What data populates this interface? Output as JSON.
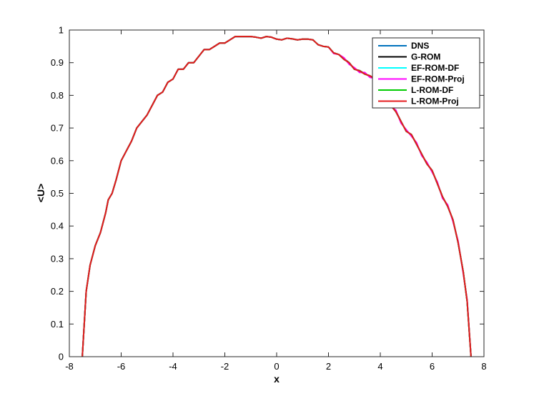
{
  "chart_data": {
    "type": "line",
    "title": "",
    "xlabel": "x",
    "ylabel": "<U>",
    "xlim": [
      -8,
      8
    ],
    "ylim": [
      0,
      1
    ],
    "xticks": [
      -8,
      -6,
      -4,
      -2,
      0,
      2,
      4,
      6,
      8
    ],
    "yticks": [
      0,
      0.1,
      0.2,
      0.3,
      0.4,
      0.5,
      0.6,
      0.7,
      0.8,
      0.9,
      1
    ],
    "xtick_labels": [
      "-8",
      "-6",
      "-4",
      "-2",
      "0",
      "2",
      "4",
      "6",
      "8"
    ],
    "ytick_labels": [
      "0",
      "0.1",
      "0.2",
      "0.3",
      "0.4",
      "0.5",
      "0.6",
      "0.7",
      "0.8",
      "0.9",
      "1"
    ],
    "grid": false,
    "legend_position": "top-right",
    "x": [
      -7.5,
      -7.35,
      -7.2,
      -7.0,
      -6.8,
      -6.6,
      -6.5,
      -6.35,
      -6.2,
      -6.0,
      -5.8,
      -5.6,
      -5.4,
      -5.2,
      -5.0,
      -4.8,
      -4.6,
      -4.4,
      -4.2,
      -4.0,
      -3.8,
      -3.6,
      -3.4,
      -3.2,
      -3.0,
      -2.8,
      -2.6,
      -2.4,
      -2.2,
      -2.0,
      -1.8,
      -1.6,
      -1.4,
      -1.2,
      -1.0,
      -0.8,
      -0.6,
      -0.4,
      -0.2,
      0.0,
      0.2,
      0.4,
      0.6,
      0.8,
      1.0,
      1.2,
      1.4,
      1.6,
      1.8,
      2.0,
      2.2,
      2.4,
      2.6,
      2.8,
      3.0,
      3.2,
      3.4,
      3.6,
      3.8,
      4.0,
      4.2,
      4.4,
      4.6,
      4.8,
      5.0,
      5.2,
      5.4,
      5.6,
      5.8,
      6.0,
      6.2,
      6.4,
      6.6,
      6.8,
      7.0,
      7.2,
      7.35,
      7.5
    ],
    "series": [
      {
        "name": "DNS",
        "color": "#0072BD",
        "values": [
          0,
          0.2,
          0.28,
          0.34,
          0.38,
          0.44,
          0.48,
          0.5,
          0.54,
          0.6,
          0.63,
          0.66,
          0.7,
          0.72,
          0.74,
          0.77,
          0.8,
          0.81,
          0.84,
          0.85,
          0.88,
          0.88,
          0.9,
          0.9,
          0.92,
          0.94,
          0.94,
          0.95,
          0.96,
          0.96,
          0.97,
          0.98,
          0.98,
          0.98,
          0.98,
          0.978,
          0.975,
          0.98,
          0.978,
          0.972,
          0.97,
          0.975,
          0.973,
          0.97,
          0.972,
          0.972,
          0.97,
          0.955,
          0.95,
          0.948,
          0.93,
          0.925,
          0.91,
          0.9,
          0.88,
          0.875,
          0.865,
          0.86,
          0.85,
          0.82,
          0.79,
          0.77,
          0.75,
          0.72,
          0.69,
          0.68,
          0.65,
          0.62,
          0.59,
          0.57,
          0.53,
          0.49,
          0.46,
          0.42,
          0.35,
          0.26,
          0.17,
          0
        ]
      },
      {
        "name": "G-ROM",
        "color": "#000000",
        "values": [
          0,
          0.2,
          0.28,
          0.34,
          0.38,
          0.44,
          0.48,
          0.5,
          0.54,
          0.6,
          0.63,
          0.66,
          0.7,
          0.72,
          0.74,
          0.77,
          0.8,
          0.81,
          0.84,
          0.85,
          0.88,
          0.88,
          0.9,
          0.9,
          0.92,
          0.94,
          0.94,
          0.95,
          0.96,
          0.96,
          0.97,
          0.98,
          0.98,
          0.98,
          0.98,
          0.978,
          0.975,
          0.98,
          0.978,
          0.972,
          0.97,
          0.975,
          0.973,
          0.97,
          0.972,
          0.972,
          0.97,
          0.955,
          0.95,
          0.948,
          0.93,
          0.925,
          0.912,
          0.9,
          0.88,
          0.876,
          0.866,
          0.858,
          0.85,
          0.82,
          0.788,
          0.77,
          0.752,
          0.72,
          0.69,
          0.68,
          0.65,
          0.62,
          0.59,
          0.57,
          0.53,
          0.49,
          0.46,
          0.42,
          0.35,
          0.26,
          0.17,
          0
        ]
      },
      {
        "name": "EF-ROM-DF",
        "color": "#00FFFF",
        "values": [
          0,
          0.2,
          0.28,
          0.34,
          0.38,
          0.44,
          0.48,
          0.5,
          0.54,
          0.6,
          0.63,
          0.66,
          0.7,
          0.72,
          0.74,
          0.77,
          0.8,
          0.81,
          0.84,
          0.85,
          0.88,
          0.88,
          0.9,
          0.9,
          0.92,
          0.94,
          0.94,
          0.95,
          0.96,
          0.96,
          0.97,
          0.98,
          0.98,
          0.98,
          0.98,
          0.978,
          0.975,
          0.98,
          0.978,
          0.972,
          0.97,
          0.975,
          0.973,
          0.97,
          0.972,
          0.972,
          0.97,
          0.955,
          0.95,
          0.948,
          0.93,
          0.925,
          0.91,
          0.9,
          0.88,
          0.875,
          0.865,
          0.86,
          0.85,
          0.82,
          0.79,
          0.77,
          0.75,
          0.72,
          0.69,
          0.68,
          0.65,
          0.62,
          0.59,
          0.57,
          0.53,
          0.49,
          0.46,
          0.42,
          0.35,
          0.26,
          0.17,
          0
        ]
      },
      {
        "name": "EF-ROM-Proj",
        "color": "#FF00FF",
        "values": [
          0,
          0.2,
          0.28,
          0.34,
          0.38,
          0.44,
          0.48,
          0.5,
          0.54,
          0.6,
          0.63,
          0.66,
          0.7,
          0.72,
          0.74,
          0.77,
          0.8,
          0.81,
          0.84,
          0.85,
          0.88,
          0.88,
          0.9,
          0.9,
          0.92,
          0.94,
          0.94,
          0.95,
          0.96,
          0.96,
          0.97,
          0.98,
          0.98,
          0.98,
          0.98,
          0.978,
          0.975,
          0.98,
          0.978,
          0.972,
          0.97,
          0.975,
          0.973,
          0.97,
          0.972,
          0.972,
          0.97,
          0.955,
          0.95,
          0.948,
          0.928,
          0.925,
          0.915,
          0.895,
          0.885,
          0.87,
          0.87,
          0.855,
          0.852,
          0.815,
          0.795,
          0.765,
          0.755,
          0.715,
          0.695,
          0.675,
          0.655,
          0.615,
          0.595,
          0.565,
          0.535,
          0.485,
          0.465,
          0.415,
          0.355,
          0.255,
          0.175,
          0
        ]
      },
      {
        "name": "L-ROM-DF",
        "color": "#00CC00",
        "values": [
          0,
          0.2,
          0.28,
          0.34,
          0.38,
          0.44,
          0.48,
          0.5,
          0.54,
          0.6,
          0.63,
          0.66,
          0.7,
          0.72,
          0.74,
          0.77,
          0.8,
          0.81,
          0.84,
          0.85,
          0.88,
          0.88,
          0.9,
          0.9,
          0.92,
          0.94,
          0.94,
          0.95,
          0.96,
          0.96,
          0.97,
          0.98,
          0.98,
          0.98,
          0.98,
          0.978,
          0.975,
          0.98,
          0.978,
          0.972,
          0.97,
          0.975,
          0.973,
          0.97,
          0.972,
          0.972,
          0.97,
          0.955,
          0.95,
          0.948,
          0.93,
          0.925,
          0.91,
          0.9,
          0.88,
          0.875,
          0.865,
          0.86,
          0.85,
          0.82,
          0.79,
          0.77,
          0.75,
          0.72,
          0.69,
          0.68,
          0.65,
          0.62,
          0.59,
          0.57,
          0.53,
          0.49,
          0.46,
          0.42,
          0.35,
          0.26,
          0.17,
          0
        ]
      },
      {
        "name": "L-ROM-Proj",
        "color": "#E41A1C",
        "values": [
          0,
          0.2,
          0.28,
          0.34,
          0.38,
          0.44,
          0.48,
          0.5,
          0.54,
          0.6,
          0.63,
          0.66,
          0.7,
          0.72,
          0.74,
          0.77,
          0.8,
          0.81,
          0.84,
          0.85,
          0.88,
          0.88,
          0.9,
          0.9,
          0.92,
          0.94,
          0.94,
          0.95,
          0.96,
          0.96,
          0.97,
          0.98,
          0.98,
          0.98,
          0.98,
          0.978,
          0.975,
          0.98,
          0.978,
          0.972,
          0.97,
          0.975,
          0.973,
          0.97,
          0.972,
          0.972,
          0.97,
          0.955,
          0.95,
          0.948,
          0.93,
          0.925,
          0.91,
          0.9,
          0.88,
          0.875,
          0.865,
          0.86,
          0.85,
          0.82,
          0.79,
          0.77,
          0.75,
          0.72,
          0.69,
          0.68,
          0.65,
          0.62,
          0.59,
          0.57,
          0.53,
          0.49,
          0.46,
          0.42,
          0.35,
          0.26,
          0.17,
          0
        ]
      }
    ]
  }
}
